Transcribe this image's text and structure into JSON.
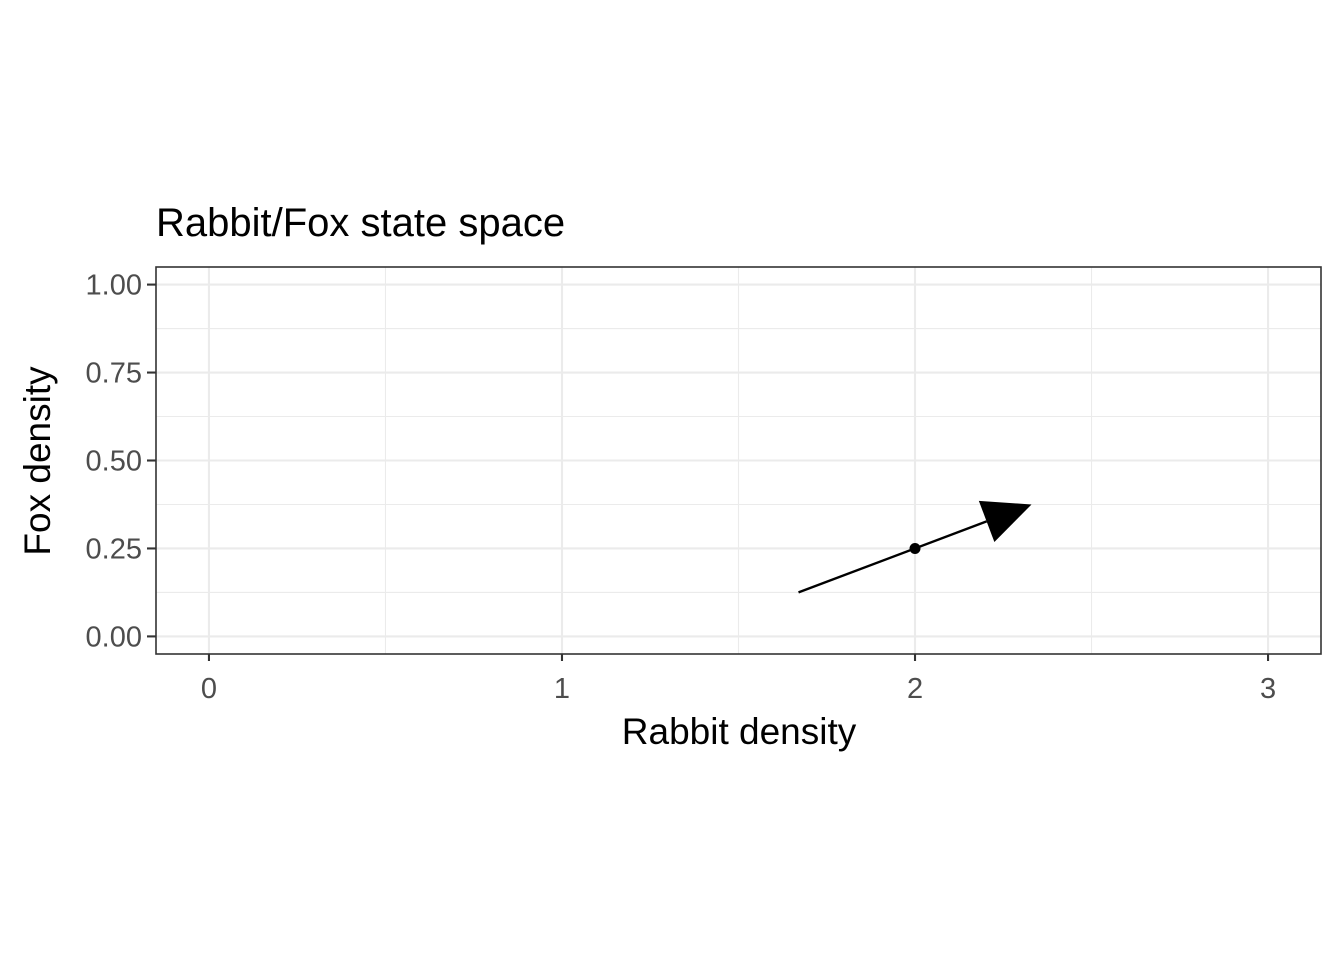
{
  "chart_data": {
    "type": "scatter",
    "title": "Rabbit/Fox state space",
    "xlabel": "Rabbit density",
    "ylabel": "Fox density",
    "xlim": [
      -0.15,
      3.15
    ],
    "ylim": [
      -0.05,
      1.05
    ],
    "x_ticks": [
      0,
      1,
      2,
      3
    ],
    "x_tick_labels": [
      "0",
      "1",
      "2",
      "3"
    ],
    "y_ticks": [
      0,
      0.25,
      0.5,
      0.75,
      1
    ],
    "y_tick_labels": [
      "0.00",
      "0.25",
      "0.50",
      "0.75",
      "1.00"
    ],
    "grid": true,
    "points": [
      {
        "x": 2,
        "y": 0.25
      }
    ],
    "arrows": [
      {
        "x_start": 1.67,
        "y_start": 0.125,
        "x_end": 2.33,
        "y_end": 0.375
      }
    ],
    "colors": {
      "point": "#000000",
      "arrow": "#000000",
      "grid": "#ebebeb",
      "panel_border": "#333333",
      "background": "#ffffff"
    }
  }
}
